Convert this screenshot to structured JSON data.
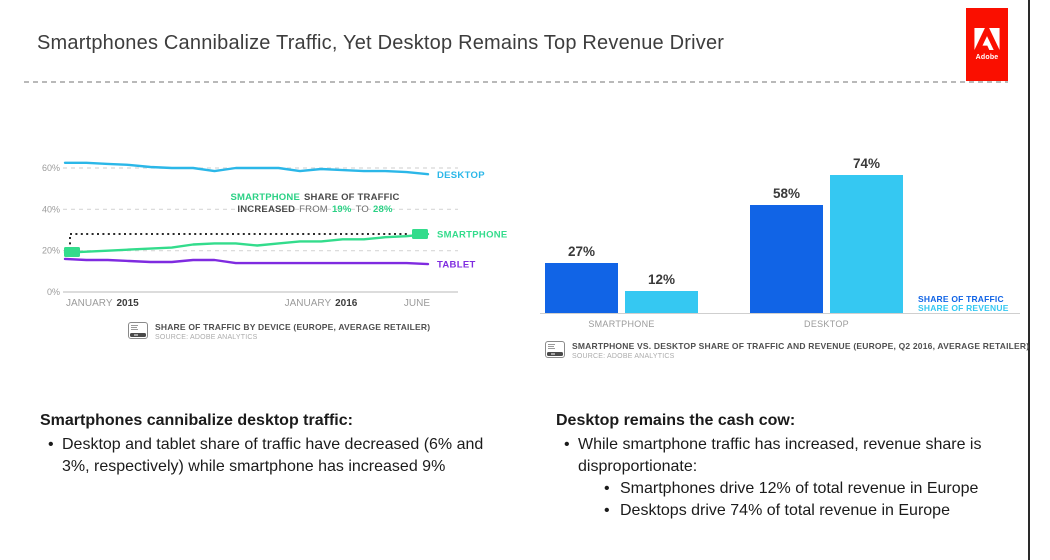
{
  "slide": {
    "title": "Smartphones Cannibalize Traffic, Yet Desktop Remains Top Revenue Driver",
    "brand": {
      "name": "Adobe",
      "color": "#FA0F00"
    }
  },
  "chart_data": [
    {
      "type": "line",
      "title": "SHARE OF TRAFFIC BY DEVICE (EUROPE, AVERAGE RETAILER)",
      "x_ticks": [
        {
          "month": "JANUARY",
          "year": "2015"
        },
        {
          "month": "JANUARY",
          "year": "2016"
        },
        {
          "month": "JUNE",
          "year": ""
        }
      ],
      "y_ticks": [
        "60%",
        "40%",
        "20%",
        "0%"
      ],
      "ylim": [
        0,
        70
      ],
      "grid": "dashed horizontal gridlines at 20/40/60",
      "legend_position": "right of lines",
      "series": [
        {
          "name": "DESKTOP",
          "color": "#2BB7E8",
          "values": [
            62.5,
            62.5,
            62,
            61.5,
            60.5,
            60,
            60,
            58.5,
            60,
            60,
            60,
            58.5,
            59.5,
            59,
            58.5,
            58.5,
            58,
            57
          ]
        },
        {
          "name": "SMARTPHONE",
          "color": "#33DC8C",
          "values": [
            19,
            19.5,
            20,
            20.5,
            21,
            21.5,
            23,
            23.5,
            23.5,
            22.5,
            23.5,
            24.5,
            24.5,
            25.5,
            25.5,
            26.5,
            27,
            28
          ]
        },
        {
          "name": "TABLET",
          "color": "#7F2BE0",
          "values": [
            16,
            15.5,
            15.5,
            15,
            14.5,
            14.5,
            15.5,
            15.5,
            14,
            14,
            14,
            14,
            14,
            14,
            14,
            14,
            14,
            13.5
          ]
        }
      ],
      "annotation": {
        "seg_smartphone": "SMARTPHONE",
        "seg_share": "SHARE OF TRAFFIC",
        "seg_increased": "INCREASED",
        "seg_from": "FROM",
        "seg_start": "19%",
        "seg_to": "TO",
        "seg_end": "28%",
        "highlight_color": "#2bd185",
        "start_value": 19,
        "end_value": 28
      }
    },
    {
      "type": "bar",
      "title": "SMARTPHONE VS. DESKTOP SHARE OF TRAFFIC AND REVENUE (EUROPE, Q2 2016, AVERAGE RETAILER)",
      "categories": [
        "SMARTPHONE",
        "DESKTOP"
      ],
      "series": [
        {
          "name": "SHARE OF TRAFFIC",
          "color": "#1164E6",
          "values": [
            27,
            58
          ]
        },
        {
          "name": "SHARE OF REVENUE",
          "color": "#35C8F2",
          "values": [
            12,
            74
          ]
        }
      ],
      "value_labels": [
        "27%",
        "12%",
        "58%",
        "74%"
      ],
      "ylim": [
        0,
        80
      ],
      "legend_position": "right of bars"
    }
  ],
  "captions": {
    "left": {
      "title": "SHARE OF TRAFFIC BY DEVICE (EUROPE, AVERAGE RETAILER)",
      "source": "SOURCE: ADOBE ANALYTICS"
    },
    "right": {
      "title": "SMARTPHONE VS. DESKTOP SHARE OF TRAFFIC AND REVENUE (EUROPE, Q2 2016, AVERAGE RETAILER)",
      "source": "SOURCE: ADOBE ANALYTICS"
    }
  },
  "insights": {
    "left": {
      "heading": "Smartphones cannibalize desktop traffic:",
      "bullets": [
        "Desktop and tablet share of traffic have decreased (6% and 3%, respectively) while smartphone has increased 9%"
      ]
    },
    "right": {
      "heading": "Desktop remains the cash cow:",
      "bullet": "While smartphone traffic has increased, revenue share is disproportionate:",
      "sub_bullets": [
        "Smartphones drive 12% of total revenue in Europe",
        "Desktops drive 74% of total revenue in Europe"
      ]
    }
  }
}
